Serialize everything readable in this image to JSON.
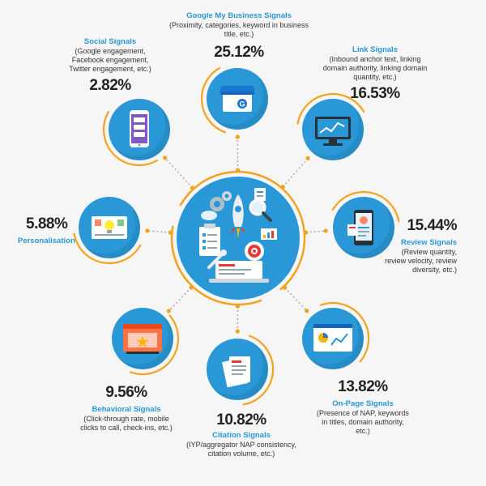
{
  "colors": {
    "ring": "#f4a21f",
    "circle": "#2a98d6",
    "circle_dark": "#1d6fa3",
    "connector": "#9a9a9a",
    "title": "#2a98d6"
  },
  "center": {
    "icon": "seo-tools-illustration"
  },
  "signals": [
    {
      "id": "gmb",
      "title": "Google My Business Signals",
      "desc": "(Proximity, categories, keyword in business title, etc.)",
      "pct": "25.12%",
      "icon": "google-my-business-storefront-icon"
    },
    {
      "id": "link",
      "title": "Link Signals",
      "desc": "(Inbound anchor text, linking domain authority, linking domain quantity, etc.)",
      "pct": "16.53%",
      "icon": "monitor-chart-icon"
    },
    {
      "id": "review",
      "title": "Review Signals",
      "desc": "(Review quantity, review velocity, review diversity, etc.)",
      "pct": "15.44%",
      "icon": "phone-profile-review-icon"
    },
    {
      "id": "onpage",
      "title": "On-Page Signals",
      "desc": "(Presence of NAP, keywords in titles, domain authority, etc.)",
      "pct": "13.82%",
      "icon": "web-page-analytics-icon"
    },
    {
      "id": "citation",
      "title": "Citation Signals",
      "desc": "(IYP/aggregator NAP consistency, citation volume, etc.)",
      "pct": "10.82%",
      "icon": "citation-documents-icon"
    },
    {
      "id": "behavioral",
      "title": "Behavioral Signals",
      "desc": "(Click-through rate, mobile clicks to call, check-ins, etc.)",
      "pct": "9.56%",
      "icon": "browser-click-icon"
    },
    {
      "id": "personal",
      "title": "Personalisation",
      "desc": "",
      "pct": "5.88%",
      "icon": "personalisation-idea-icon"
    },
    {
      "id": "social",
      "title": "Social Signals",
      "desc": "(Google engagement, Facebook engagement, Twitter engagement, etc.)",
      "pct": "2.82%",
      "icon": "smartphone-social-icon"
    }
  ]
}
